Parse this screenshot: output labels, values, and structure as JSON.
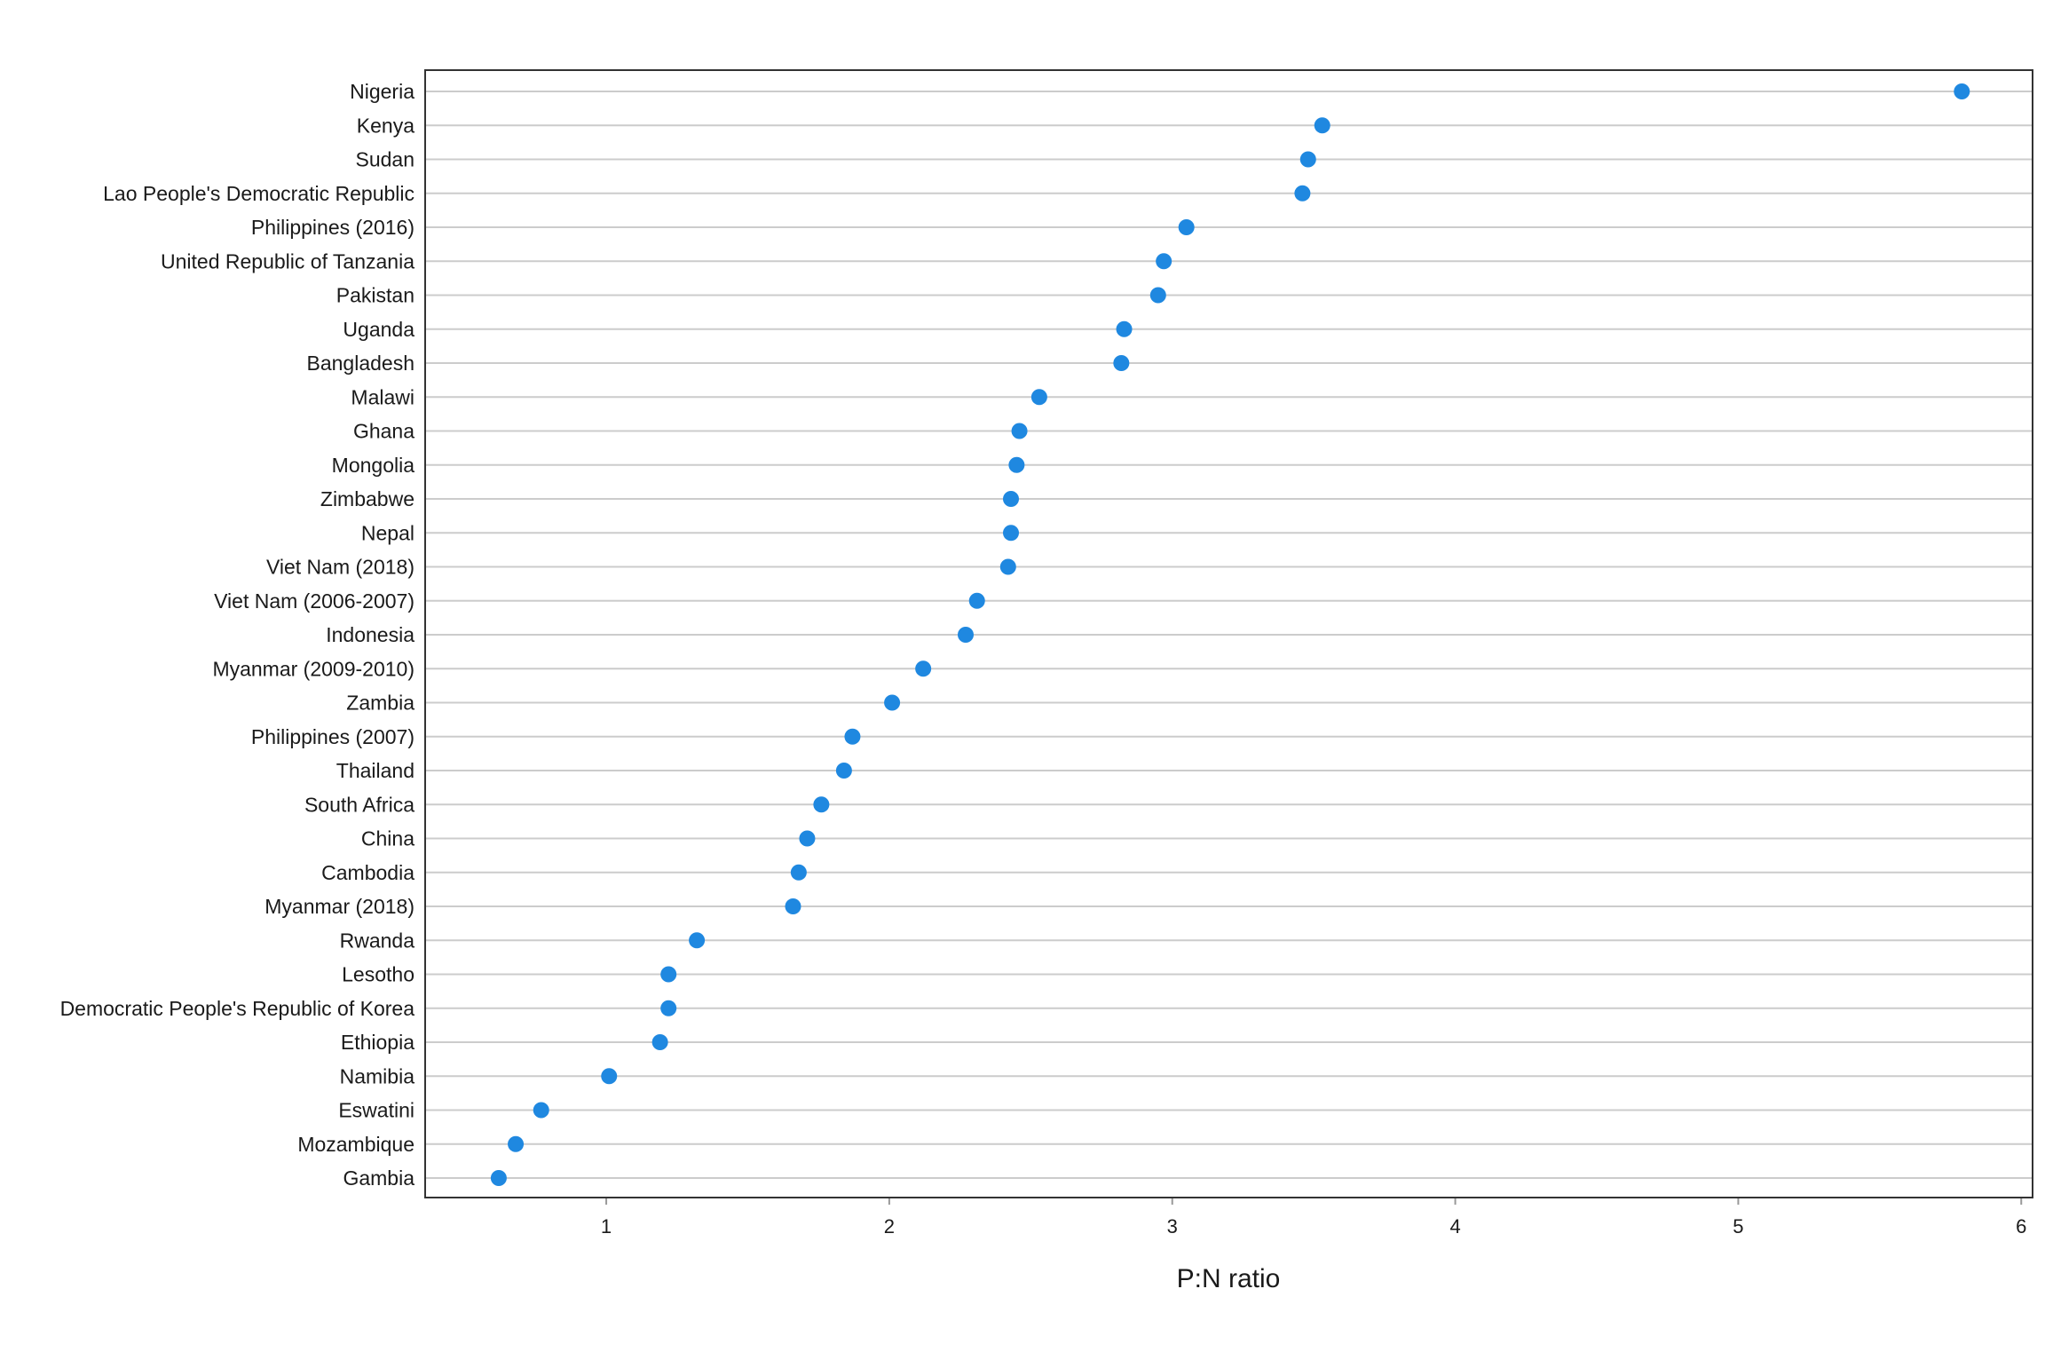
{
  "chart_data": {
    "type": "scatter",
    "title": "",
    "xlabel": "P:N ratio",
    "ylabel": "",
    "xlim": [
      0.36,
      6.04
    ],
    "xticks": [
      1,
      2,
      3,
      4,
      5,
      6
    ],
    "grid": "horizontal",
    "point_color": "#1f88e0",
    "categories": [
      "Nigeria",
      "Kenya",
      "Sudan",
      "Lao People's Democratic Republic",
      "Philippines (2016)",
      "United Republic of Tanzania",
      "Pakistan",
      "Uganda",
      "Bangladesh",
      "Malawi",
      "Ghana",
      "Mongolia",
      "Zimbabwe",
      "Nepal",
      "Viet Nam (2018)",
      "Viet Nam (2006-2007)",
      "Indonesia",
      "Myanmar (2009-2010)",
      "Zambia",
      "Philippines (2007)",
      "Thailand",
      "South Africa",
      "China",
      "Cambodia",
      "Myanmar (2018)",
      "Rwanda",
      "Lesotho",
      "Democratic People's Republic of Korea",
      "Ethiopia",
      "Namibia",
      "Eswatini",
      "Mozambique",
      "Gambia"
    ],
    "values": [
      5.79,
      3.53,
      3.48,
      3.46,
      3.05,
      2.97,
      2.95,
      2.83,
      2.82,
      2.53,
      2.46,
      2.45,
      2.43,
      2.43,
      2.42,
      2.31,
      2.27,
      2.12,
      2.01,
      1.87,
      1.84,
      1.76,
      1.71,
      1.68,
      1.66,
      1.32,
      1.22,
      1.22,
      1.19,
      1.01,
      0.77,
      0.68,
      0.62
    ]
  }
}
